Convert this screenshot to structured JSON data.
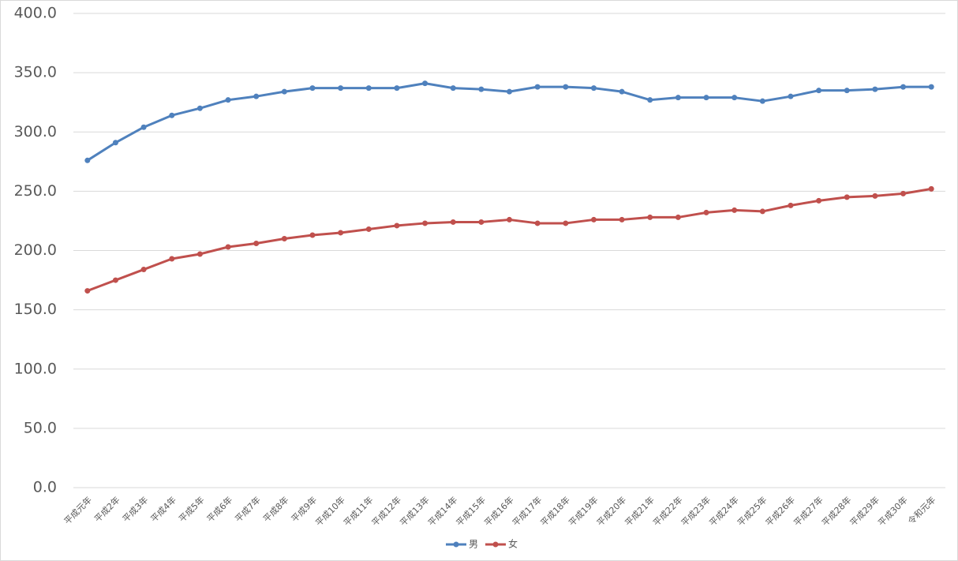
{
  "chart_data": {
    "type": "line",
    "categories": [
      "平成元年",
      "平成2年",
      "平成3年",
      "平成4年",
      "平成5年",
      "平成6年",
      "平成7年",
      "平成8年",
      "平成9年",
      "平成10年",
      "平成11年",
      "平成12年",
      "平成13年",
      "平成14年",
      "平成15年",
      "平成16年",
      "平成17年",
      "平成18年",
      "平成19年",
      "平成20年",
      "平成21年",
      "平成22年",
      "平成23年",
      "平成24年",
      "平成25年",
      "平成26年",
      "平成27年",
      "平成28年",
      "平成29年",
      "平成30年",
      "令和元年"
    ],
    "series": [
      {
        "name": "男",
        "color": "#4f81bd",
        "values": [
          276,
          291,
          304,
          314,
          320,
          327,
          330,
          334,
          337,
          337,
          337,
          337,
          341,
          337,
          336,
          334,
          338,
          338,
          337,
          334,
          327,
          329,
          329,
          329,
          326,
          330,
          335,
          335,
          336,
          338,
          338
        ]
      },
      {
        "name": "女",
        "color": "#c0504d",
        "values": [
          166,
          175,
          184,
          193,
          197,
          203,
          206,
          210,
          213,
          215,
          218,
          221,
          223,
          224,
          224,
          226,
          223,
          223,
          226,
          226,
          228,
          228,
          232,
          234,
          233,
          238,
          242,
          245,
          246,
          248,
          252
        ]
      }
    ],
    "ylim": [
      0,
      400
    ],
    "yticks": [
      {
        "value": 0,
        "label": "0.0"
      },
      {
        "value": 50,
        "label": "50.0"
      },
      {
        "value": 100,
        "label": "100.0"
      },
      {
        "value": 150,
        "label": "150.0"
      },
      {
        "value": 200,
        "label": "200.0"
      },
      {
        "value": 250,
        "label": "250.0"
      },
      {
        "value": 300,
        "label": "300.0"
      },
      {
        "value": 350,
        "label": "350.0"
      },
      {
        "value": 400,
        "label": "400.0"
      }
    ],
    "grid": true,
    "legend": "bottom"
  }
}
